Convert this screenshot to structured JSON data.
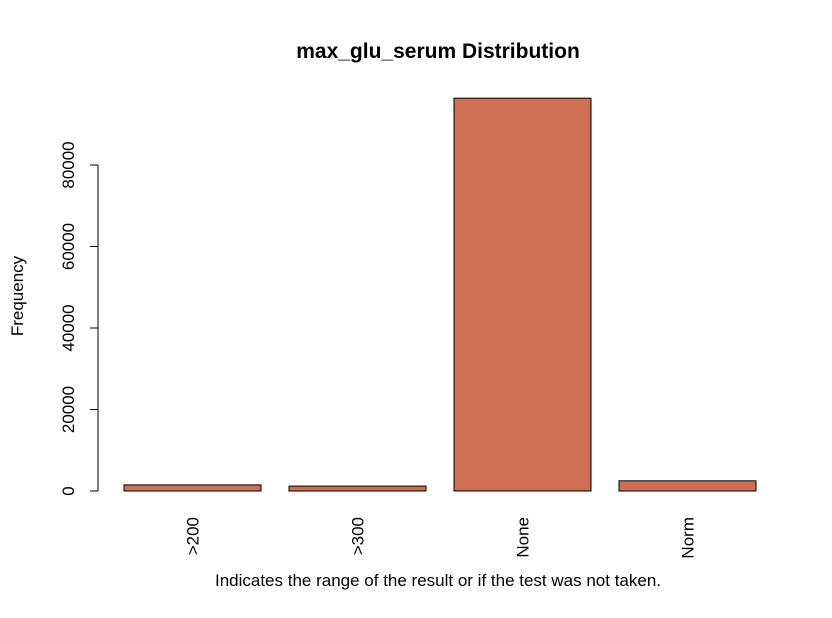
{
  "chart_data": {
    "type": "bar",
    "title": "max_glu_serum Distribution",
    "x_label": "Indicates the range of the result or if the test was not taken.",
    "y_label": "Frequency",
    "categories": [
      ">200",
      ">300",
      "None",
      "Norm"
    ],
    "values": [
      1500,
      1200,
      96400,
      2500
    ],
    "color": "#cd7054",
    "ylim": [
      0,
      100000
    ],
    "yticks": [
      0,
      20000,
      40000,
      60000,
      80000
    ]
  }
}
